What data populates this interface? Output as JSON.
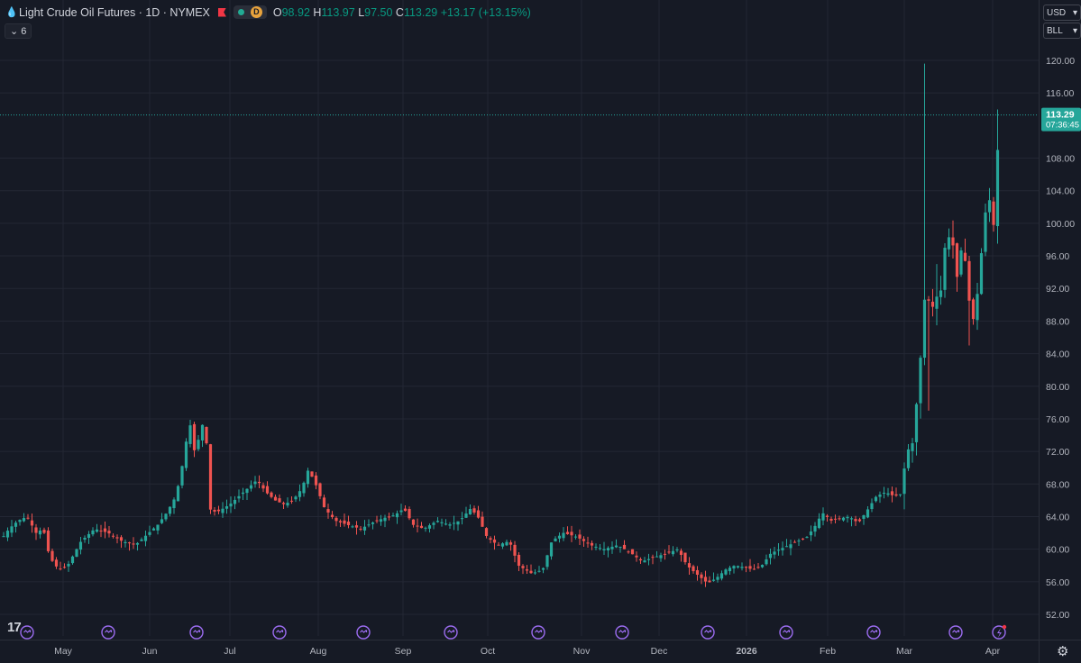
{
  "header": {
    "symbol_title": "Light Crude Oil Futures · 1D · NYMEX",
    "badge": "D",
    "open_label": "O",
    "open": "98.92",
    "high_label": "H",
    "high": "113.97",
    "low_label": "L",
    "low": "97.50",
    "close_label": "C",
    "close": "113.29",
    "change": "+13.17 (+13.15%)"
  },
  "indicator_toggle": "6",
  "currency_select": "USD",
  "unit_select": "BLL",
  "last_price": {
    "value": "113.29",
    "countdown": "07:36:45"
  },
  "colors": {
    "up": "#26a69a",
    "down": "#ef5350",
    "background": "#161a25",
    "grid": "#232734",
    "events": "#9b6cf0"
  },
  "icons": [
    "droplet-icon",
    "flag-icon",
    "tradingview-logo-icon",
    "settings-gear-icon",
    "event-marker-icon",
    "lightning-icon"
  ],
  "chart_data": {
    "type": "candlestick",
    "title": "Light Crude Oil Futures · 1D · NYMEX",
    "y_ticks": [
      52,
      56,
      60,
      64,
      68,
      72,
      76,
      80,
      84,
      88,
      92,
      96,
      100,
      104,
      108,
      116,
      120
    ],
    "ylim": [
      50.5,
      123.5
    ],
    "x_ticks": [
      "May",
      "Jun",
      "Jul",
      "Aug",
      "Sep",
      "Oct",
      "Nov",
      "Dec",
      "2026",
      "Feb",
      "Mar",
      "Apr"
    ],
    "grid": true,
    "last_price_line": 113.29,
    "key_points": [
      {
        "date": "early May",
        "close": 62.5
      },
      {
        "date": "mid Jun",
        "high": 77.5
      },
      {
        "date": "late Jun",
        "high": 78.5,
        "close": 64.5
      },
      {
        "date": "late Jul",
        "high": 70.3
      },
      {
        "date": "mid Dec",
        "low": 55.2
      },
      {
        "date": "early Mar",
        "close": 92.0
      },
      {
        "date": "Mar",
        "high": 119.6
      },
      {
        "date": "Apr",
        "open": 98.92,
        "high": 113.97,
        "low": 97.5,
        "close": 113.29
      }
    ]
  }
}
